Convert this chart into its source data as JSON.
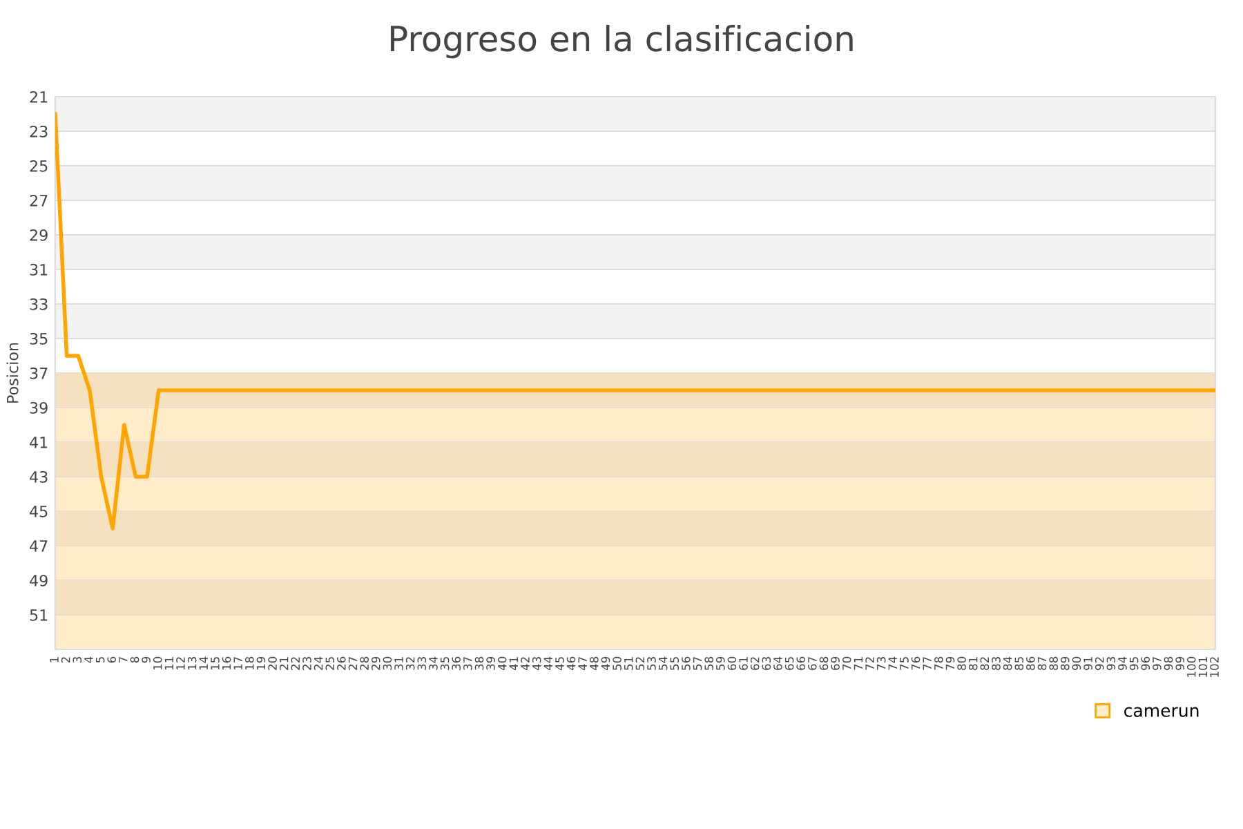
{
  "chart_data": {
    "type": "line",
    "title": "Progreso en la clasificacion",
    "ylabel": "Posicion",
    "categories": [
      "1",
      "2",
      "3",
      "4",
      "5",
      "6",
      "7",
      "8",
      "9",
      "10",
      "11",
      "12",
      "13",
      "14",
      "15",
      "16",
      "17",
      "18",
      "19",
      "20",
      "21",
      "22",
      "23",
      "24",
      "25",
      "26",
      "27",
      "28",
      "29",
      "30",
      "31",
      "32",
      "33",
      "34",
      "35",
      "36",
      "37",
      "38",
      "39",
      "40",
      "41",
      "42",
      "43",
      "44",
      "45",
      "46",
      "47",
      "48",
      "49",
      "50",
      "51",
      "52",
      "53",
      "54",
      "55",
      "56",
      "57",
      "58",
      "59",
      "60",
      "61",
      "62",
      "63",
      "64",
      "65",
      "66",
      "67",
      "68",
      "69",
      "70",
      "71",
      "72",
      "73",
      "74",
      "75",
      "76",
      "77",
      "78",
      "79",
      "80",
      "81",
      "82",
      "83",
      "84",
      "85",
      "86",
      "87",
      "88",
      "89",
      "90",
      "91",
      "92",
      "93",
      "94",
      "95",
      "96",
      "97",
      "98",
      "99",
      "100",
      "101",
      "102"
    ],
    "series": [
      {
        "name": "camerun",
        "color": "#ffa500",
        "values": [
          22,
          36,
          36,
          38,
          43,
          46,
          40,
          43,
          43,
          38,
          38,
          38,
          38,
          38,
          38,
          38,
          38,
          38,
          38,
          38,
          38,
          38,
          38,
          38,
          38,
          38,
          38,
          38,
          38,
          38,
          38,
          38,
          38,
          38,
          38,
          38,
          38,
          38,
          38,
          38,
          38,
          38,
          38,
          38,
          38,
          38,
          38,
          38,
          38,
          38,
          38,
          38,
          38,
          38,
          38,
          38,
          38,
          38,
          38,
          38,
          38,
          38,
          38,
          38,
          38,
          38,
          38,
          38,
          38,
          38,
          38,
          38,
          38,
          38,
          38,
          38,
          38,
          38,
          38,
          38,
          38,
          38,
          38,
          38,
          38,
          38,
          38,
          38,
          38,
          38,
          38,
          38,
          38,
          38,
          38,
          38,
          38,
          38,
          38,
          38,
          38,
          38
        ]
      }
    ],
    "ylim": [
      53,
      21
    ],
    "yticks": [
      21,
      23,
      25,
      27,
      29,
      31,
      33,
      35,
      37,
      39,
      41,
      43,
      45,
      47,
      49,
      51
    ],
    "bands": [
      {
        "axis": "y",
        "from": 37,
        "to": 53,
        "color": "#ffecc8"
      },
      {
        "axis": "y",
        "from": 37,
        "to": 39,
        "color": "#f5e1c0"
      },
      {
        "axis": "y",
        "from": 41,
        "to": 43,
        "color": "#f5e1c0"
      },
      {
        "axis": "y",
        "from": 45,
        "to": 47,
        "color": "#f5e1c0"
      },
      {
        "axis": "y",
        "from": 49,
        "to": 51,
        "color": "#f5e1c0"
      }
    ],
    "grid": "y",
    "legend": "bottom right",
    "marker": "none",
    "line_style": "solid"
  }
}
